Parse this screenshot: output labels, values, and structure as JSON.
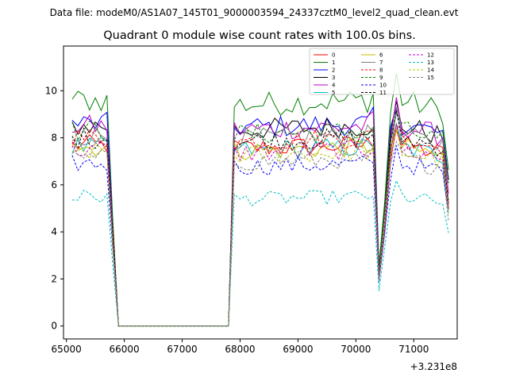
{
  "chart_data": {
    "type": "line",
    "suptitle": "Data file: modeM0/AS1A07_145T01_9000003594_24337cztM0_level2_quad_clean.evt",
    "title": "Quadrant 0 module wise count rates with 100.0s bins.",
    "xlabel": "",
    "ylabel": "",
    "x_offset_label": "+3.231e8",
    "xlim": [
      64950,
      71750
    ],
    "ylim": [
      -0.55,
      11.9
    ],
    "x_ticks": [
      65000,
      66000,
      67000,
      68000,
      69000,
      70000,
      71000
    ],
    "y_ticks": [
      0,
      2,
      4,
      6,
      8,
      10
    ],
    "grid": false,
    "legend": "top-right, 3 columns",
    "colors": [
      "#ff0000",
      "#008000",
      "#0000ff",
      "#000000",
      "#bf00bf",
      "#00bfbf",
      "#bfbf00",
      "#808080"
    ],
    "series": [
      {
        "name": "0",
        "level": 7.7
      },
      {
        "name": "1",
        "level": 9.6
      },
      {
        "name": "2",
        "level": 8.6
      },
      {
        "name": "3",
        "level": 8.5
      },
      {
        "name": "4",
        "level": 8.5
      },
      {
        "name": "5",
        "level": 7.6
      },
      {
        "name": "6",
        "level": 7.6
      },
      {
        "name": "7",
        "level": 8.1
      },
      {
        "name": "8",
        "level": 8.0
      },
      {
        "name": "9",
        "level": 8.3
      },
      {
        "name": "10",
        "level": 6.9
      },
      {
        "name": "11",
        "level": 8.0
      },
      {
        "name": "12",
        "level": 7.5
      },
      {
        "name": "13",
        "level": 5.5
      },
      {
        "name": "14",
        "level": 7.4
      },
      {
        "name": "15",
        "level": 7.1
      }
    ]
  }
}
